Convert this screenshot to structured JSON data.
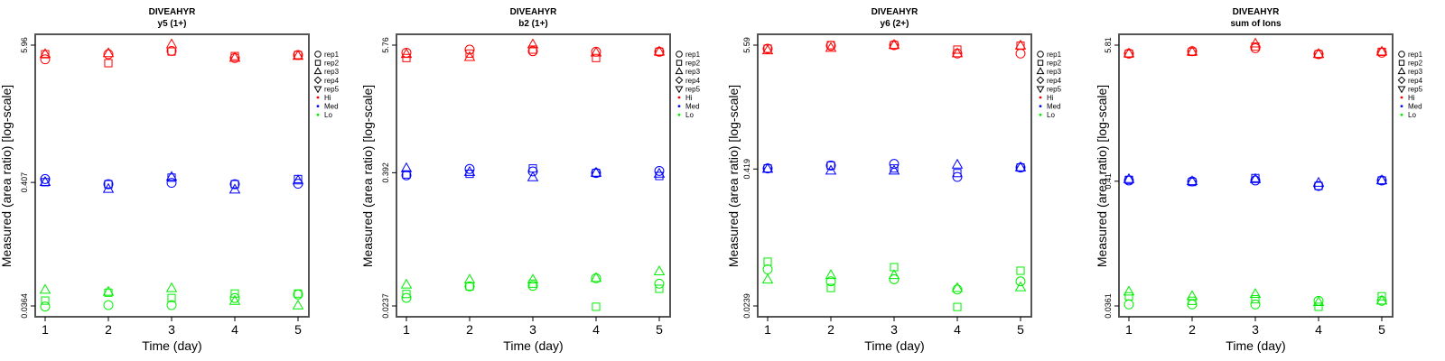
{
  "colors": {
    "Hi": "#ff0000",
    "Med": "#0000ff",
    "Lo": "#00ee00",
    "axis": "#555555"
  },
  "legend": {
    "reps": [
      {
        "label": "rep1",
        "shape": "circle"
      },
      {
        "label": "rep2",
        "shape": "square"
      },
      {
        "label": "rep3",
        "shape": "triangle-up"
      },
      {
        "label": "rep4",
        "shape": "diamond"
      },
      {
        "label": "rep5",
        "shape": "triangle-down"
      }
    ],
    "groups": [
      "Hi",
      "Med",
      "Lo"
    ]
  },
  "chart_data": [
    {
      "type": "scatter",
      "title": "DIVEAHYR",
      "subtitle": "y5 (1+)",
      "xlabel": "Time (day)",
      "ylabel": "Measured (area ratio) [log-scale]",
      "yscale": "log",
      "x": [
        1,
        2,
        3,
        4,
        5
      ],
      "xticks": [
        "1",
        "2",
        "3",
        "4",
        "5"
      ],
      "yticks": [
        "0.0364",
        "0.407",
        "5.96"
      ],
      "ylim": [
        0.0364,
        5.96
      ],
      "series": [
        {
          "group": "Hi",
          "rep": "rep1",
          "values": [
            4.52,
            4.99,
            5.32,
            4.63,
            4.91
          ]
        },
        {
          "group": "Hi",
          "rep": "rep2",
          "values": [
            4.99,
            4.19,
            5.26,
            4.81,
            4.91
          ]
        },
        {
          "group": "Hi",
          "rep": "rep3",
          "values": [
            4.99,
            5.07,
            6.03,
            4.63,
            4.81
          ]
        },
        {
          "group": "Med",
          "rep": "rep1",
          "values": [
            0.435,
            0.393,
            0.404,
            0.393,
            0.397
          ]
        },
        {
          "group": "Med",
          "rep": "rep2",
          "values": [
            0.409,
            0.393,
            0.447,
            0.393,
            0.435
          ]
        },
        {
          "group": "Med",
          "rep": "rep3",
          "values": [
            0.409,
            0.357,
            0.452,
            0.353,
            0.422
          ]
        },
        {
          "group": "Lo",
          "rep": "rep1",
          "values": [
            0.036,
            0.037,
            0.037,
            0.0425,
            0.0455
          ]
        },
        {
          "group": "Lo",
          "rep": "rep2",
          "values": [
            0.0404,
            0.0472,
            0.0425,
            0.0464,
            0.0464
          ]
        },
        {
          "group": "Lo",
          "rep": "rep3",
          "values": [
            0.0498,
            0.0478,
            0.0513,
            0.04,
            0.0366
          ]
        }
      ]
    },
    {
      "type": "scatter",
      "title": "DIVEAHYR",
      "subtitle": "b2 (1+)",
      "xlabel": "Time (day)",
      "ylabel": "Measured (area ratio) [log-scale]",
      "yscale": "log",
      "x": [
        1,
        2,
        3,
        4,
        5
      ],
      "xticks": [
        "1",
        "2",
        "3",
        "4",
        "5"
      ],
      "yticks": [
        "0.0237",
        "0.392",
        "5.76"
      ],
      "ylim": [
        0.0237,
        5.76
      ],
      "series": [
        {
          "group": "Hi",
          "rep": "rep1",
          "values": [
            4.91,
            5.24,
            5.07,
            5.01,
            5.01
          ]
        },
        {
          "group": "Hi",
          "rep": "rep2",
          "values": [
            4.39,
            4.82,
            5.24,
            4.39,
            5.01
          ]
        },
        {
          "group": "Hi",
          "rep": "rep3",
          "values": [
            4.76,
            4.47,
            5.83,
            4.91,
            5.01
          ]
        },
        {
          "group": "Med",
          "rep": "rep1",
          "values": [
            0.371,
            0.424,
            0.403,
            0.39,
            0.407
          ]
        },
        {
          "group": "Med",
          "rep": "rep2",
          "values": [
            0.378,
            0.383,
            0.429,
            0.39,
            0.366
          ]
        },
        {
          "group": "Med",
          "rep": "rep3",
          "values": [
            0.429,
            0.397,
            0.355,
            0.39,
            0.383
          ]
        },
        {
          "group": "Lo",
          "rep": "rep1",
          "values": [
            0.0281,
            0.0358,
            0.0362,
            0.0425,
            0.0379
          ]
        },
        {
          "group": "Lo",
          "rep": "rep2",
          "values": [
            0.0305,
            0.0358,
            0.0379,
            0.0233,
            0.034
          ]
        },
        {
          "group": "Lo",
          "rep": "rep3",
          "values": [
            0.037,
            0.0411,
            0.0411,
            0.0425,
            0.0489
          ]
        }
      ]
    },
    {
      "type": "scatter",
      "title": "DIVEAHYR",
      "subtitle": "y6 (2+)",
      "xlabel": "Time (day)",
      "ylabel": "Measured (area ratio) [log-scale]",
      "yscale": "log",
      "x": [
        1,
        2,
        3,
        4,
        5
      ],
      "xticks": [
        "1",
        "2",
        "3",
        "4",
        "5"
      ],
      "yticks": [
        "0.0239",
        "0.419",
        "5.59"
      ],
      "ylim": [
        0.0239,
        5.59
      ],
      "series": [
        {
          "group": "Hi",
          "rep": "rep1",
          "values": [
            5.19,
            5.52,
            5.59,
            4.69,
            4.69
          ]
        },
        {
          "group": "Hi",
          "rep": "rep2",
          "values": [
            5.19,
            5.59,
            5.59,
            5.09,
            5.52
          ]
        },
        {
          "group": "Hi",
          "rep": "rep3",
          "values": [
            4.99,
            5.25,
            5.59,
            4.69,
            5.52
          ]
        },
        {
          "group": "Med",
          "rep": "rep1",
          "values": [
            0.424,
            0.451,
            0.466,
            0.355,
            0.432
          ]
        },
        {
          "group": "Med",
          "rep": "rep2",
          "values": [
            0.424,
            0.451,
            0.424,
            0.385,
            0.432
          ]
        },
        {
          "group": "Med",
          "rep": "rep3",
          "values": [
            0.419,
            0.403,
            0.403,
            0.457,
            0.432
          ]
        },
        {
          "group": "Lo",
          "rep": "rep1",
          "values": [
            0.0514,
            0.04,
            0.0418,
            0.0337,
            0.04
          ]
        },
        {
          "group": "Lo",
          "rep": "rep2",
          "values": [
            0.0603,
            0.0348,
            0.0538,
            0.0234,
            0.0499
          ]
        },
        {
          "group": "Lo",
          "rep": "rep3",
          "values": [
            0.0413,
            0.0454,
            0.0454,
            0.0346,
            0.0352
          ]
        }
      ]
    },
    {
      "type": "scatter",
      "title": "DIVEAHYR",
      "subtitle": "sum of Ions",
      "xlabel": "Time (day)",
      "ylabel": "Measured (area ratio) [log-scale]",
      "yscale": "log",
      "x": [
        1,
        2,
        3,
        4,
        5
      ],
      "xticks": [
        "1",
        "2",
        "3",
        "4",
        "5"
      ],
      "yticks": [
        "0.0361",
        "0.41",
        "5.81"
      ],
      "ylim": [
        0.0361,
        5.81
      ],
      "series": [
        {
          "group": "Hi",
          "rep": "rep1",
          "values": [
            4.92,
            5.16,
            5.47,
            4.87,
            5.01
          ]
        },
        {
          "group": "Hi",
          "rep": "rep2",
          "values": [
            4.92,
            5.1,
            5.64,
            4.87,
            5.1
          ]
        },
        {
          "group": "Hi",
          "rep": "rep3",
          "values": [
            4.92,
            5.1,
            5.97,
            4.87,
            5.1
          ]
        },
        {
          "group": "Med",
          "rep": "rep1",
          "values": [
            0.416,
            0.408,
            0.416,
            0.374,
            0.416
          ]
        },
        {
          "group": "Med",
          "rep": "rep2",
          "values": [
            0.421,
            0.404,
            0.436,
            0.374,
            0.416
          ]
        },
        {
          "group": "Med",
          "rep": "rep3",
          "values": [
            0.426,
            0.408,
            0.426,
            0.396,
            0.416
          ]
        },
        {
          "group": "Lo",
          "rep": "rep1",
          "values": [
            0.0372,
            0.0372,
            0.0372,
            0.0399,
            0.0399
          ]
        },
        {
          "group": "Lo",
          "rep": "rep2",
          "values": [
            0.0436,
            0.0399,
            0.0411,
            0.0355,
            0.0436
          ]
        },
        {
          "group": "Lo",
          "rep": "rep3",
          "values": [
            0.0476,
            0.0436,
            0.0454,
            0.0388,
            0.0399
          ]
        }
      ]
    }
  ]
}
